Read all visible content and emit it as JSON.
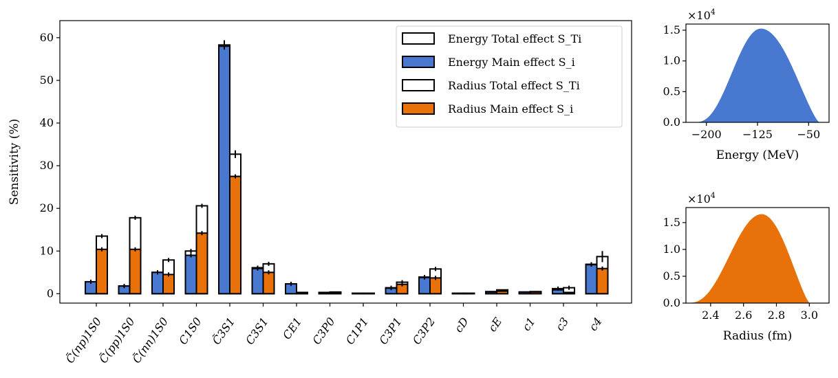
{
  "chart_data": [
    {
      "type": "bar",
      "ylabel": "Sensitivity (%)",
      "ylim": [
        -2.2,
        64
      ],
      "yticks": [
        0,
        10,
        20,
        30,
        40,
        50,
        60
      ],
      "grid": false,
      "legend_position": "top-right",
      "categories": [
        "C̃(np)1S0",
        "C̃(pp)1S0",
        "C̃(nn)1S0",
        "C1S0",
        "C̃3S1",
        "C3S1",
        "CE1",
        "C3P0",
        "C1P1",
        "C3P1",
        "C3P2",
        "cD",
        "cE",
        "c1",
        "c3",
        "c4"
      ],
      "series": [
        {
          "name": "Energy Total effect S_Ti",
          "color": "#ffffff",
          "values": [
            2.8,
            1.8,
            5.0,
            10.0,
            58.3,
            6.1,
            2.3,
            0.3,
            0.1,
            1.4,
            3.9,
            0.1,
            0.5,
            0.4,
            1.2,
            6.9
          ]
        },
        {
          "name": "Energy Main effect S_i",
          "color": "#4878cf",
          "values": [
            2.8,
            1.8,
            5.0,
            9.0,
            58.0,
            5.9,
            2.3,
            0.3,
            0.1,
            1.3,
            3.8,
            0.1,
            0.4,
            0.4,
            0.9,
            6.8
          ]
        },
        {
          "name": "Radius Total effect S_Ti",
          "color": "#ffffff",
          "values": [
            13.5,
            17.8,
            7.9,
            20.6,
            32.7,
            7.0,
            0.3,
            0.4,
            0.1,
            2.7,
            5.8,
            0.1,
            0.9,
            0.5,
            1.4,
            8.7
          ]
        },
        {
          "name": "Radius Main effect S_i",
          "color": "#e8710a",
          "values": [
            10.4,
            10.4,
            4.5,
            14.2,
            27.5,
            5.0,
            0.3,
            0.3,
            0.1,
            2.2,
            3.7,
            0.1,
            0.6,
            0.4,
            0.3,
            5.9
          ]
        }
      ]
    },
    {
      "type": "histogram",
      "xlabel": "Energy (MeV)",
      "xlim": [
        -230,
        -20
      ],
      "xticks": [
        -200,
        -125,
        -50
      ],
      "xtick_labels": [
        "−200",
        "−125",
        "−50"
      ],
      "ylim": [
        0,
        1.6
      ],
      "yticks": [
        0.0,
        0.5,
        1.0,
        1.5
      ],
      "ytick_labels": [
        "0.0",
        "0.5",
        "1.0",
        "1.5"
      ],
      "y_scale_label": "×10",
      "y_scale_exponent": "4",
      "color": "#4878cf",
      "peak_x": -120,
      "peak_y": 1.52,
      "range": [
        -215,
        -35
      ],
      "shape": "left-skewed"
    },
    {
      "type": "histogram",
      "xlabel": "Radius (fm)",
      "xlim": [
        2.25,
        3.12
      ],
      "xticks": [
        2.4,
        2.6,
        2.8,
        3.0
      ],
      "xtick_labels": [
        "2.4",
        "2.6",
        "2.8",
        "3.0"
      ],
      "ylim": [
        0,
        1.78
      ],
      "yticks": [
        0.0,
        0.5,
        1.0,
        1.5
      ],
      "ytick_labels": [
        "0.0",
        "0.5",
        "1.0",
        "1.5"
      ],
      "y_scale_label": "×10",
      "y_scale_exponent": "4",
      "color": "#e8710a",
      "peak_x": 2.71,
      "peak_y": 1.65,
      "range": [
        2.27,
        3.0
      ],
      "shape": "left-skewed"
    }
  ]
}
